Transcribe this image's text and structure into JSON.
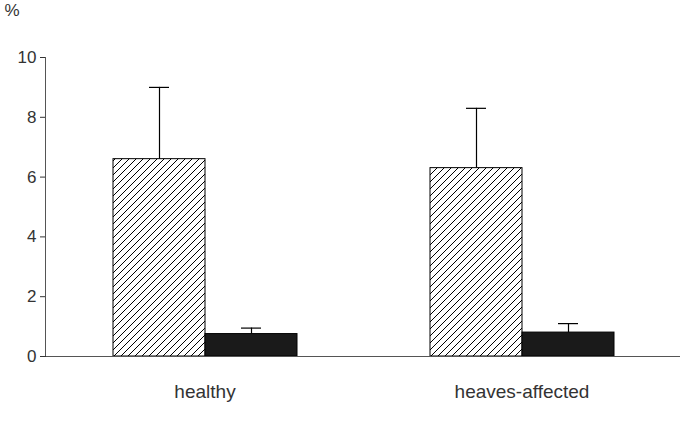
{
  "chart_data": {
    "type": "bar",
    "y_label": "%",
    "categories": [
      "healthy",
      "heaves-affected"
    ],
    "series": [
      {
        "color": "#ffffff",
        "values": [
          6.6,
          6.3
        ],
        "errors": [
          2.4,
          2.0
        ]
      },
      {
        "color": "#1a1a1a",
        "values": [
          0.75,
          0.8
        ],
        "errors": [
          0.2,
          0.3
        ]
      }
    ],
    "ylim": [
      0,
      10
    ],
    "yticks": [
      0,
      2,
      4,
      6,
      8,
      10
    ],
    "grid": false
  }
}
